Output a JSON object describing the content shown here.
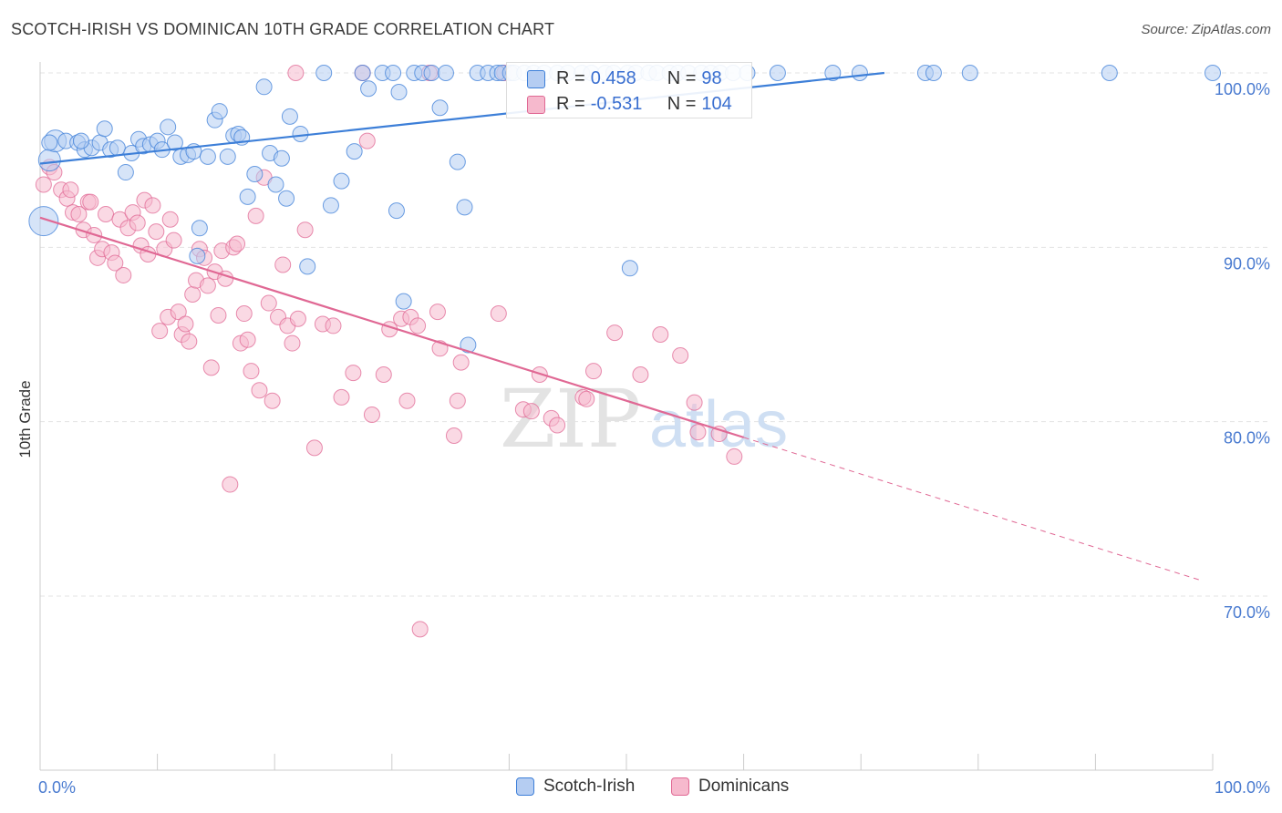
{
  "title": "SCOTCH-IRISH VS DOMINICAN 10TH GRADE CORRELATION CHART",
  "source": "Source: ZipAtlas.com",
  "watermark": {
    "zip": "ZIP",
    "atlas": "atlas"
  },
  "colors": {
    "blue": "#3d7fd8",
    "blue_fill": "#b5cdf2",
    "pink": "#e06894",
    "pink_fill": "#f6b9cd",
    "axis_text": "#4a7bd0"
  },
  "stats": [
    {
      "r_label": "R = ",
      "r": "0.458",
      "n_label": "N = ",
      "n": "98"
    },
    {
      "r_label": "R = ",
      "r": "-0.531",
      "n_label": "N = ",
      "n": "104"
    }
  ],
  "chart_data": {
    "type": "scatter",
    "title": "SCOTCH-IRISH VS DOMINICAN 10TH GRADE CORRELATION CHART",
    "xlabel": "",
    "ylabel": "10th Grade",
    "xlim": [
      0,
      100
    ],
    "ylim": [
      60,
      101.5
    ],
    "x_tick_labels": [
      "0.0%",
      "100.0%"
    ],
    "y_ticks": [
      70,
      80,
      90,
      100
    ],
    "y_tick_labels": [
      "70.0%",
      "80.0%",
      "90.0%",
      "100.0%"
    ],
    "grid": true,
    "legend_position": "bottom-center",
    "series": [
      {
        "name": "Scotch-Irish",
        "color": "#3d7fd8",
        "trend": {
          "x": [
            0,
            72
          ],
          "y": [
            94.8,
            100
          ]
        },
        "points": [
          [
            0.3,
            91.5
          ],
          [
            0.8,
            95
          ],
          [
            1.3,
            96.1
          ],
          [
            2.2,
            96.1
          ],
          [
            3.2,
            96.0
          ],
          [
            3.8,
            95.6
          ],
          [
            4.4,
            95.7
          ],
          [
            5.1,
            96.0
          ],
          [
            5.5,
            96.8
          ],
          [
            6.0,
            95.6
          ],
          [
            6.6,
            95.7
          ],
          [
            7.3,
            94.3
          ],
          [
            7.8,
            95.4
          ],
          [
            8.4,
            96.2
          ],
          [
            8.8,
            95.8
          ],
          [
            9.4,
            95.9
          ],
          [
            10.0,
            96.1
          ],
          [
            10.4,
            95.6
          ],
          [
            10.9,
            96.9
          ],
          [
            11.5,
            96.0
          ],
          [
            12.0,
            95.2
          ],
          [
            12.6,
            95.3
          ],
          [
            13.1,
            95.5
          ],
          [
            13.4,
            89.5
          ],
          [
            13.6,
            91.1
          ],
          [
            14.3,
            95.2
          ],
          [
            14.9,
            97.3
          ],
          [
            15.3,
            97.8
          ],
          [
            16.0,
            95.2
          ],
          [
            16.5,
            96.4
          ],
          [
            16.9,
            96.5
          ],
          [
            17.2,
            96.3
          ],
          [
            17.7,
            92.9
          ],
          [
            18.3,
            94.2
          ],
          [
            19.1,
            99.2
          ],
          [
            19.6,
            95.4
          ],
          [
            20.1,
            93.6
          ],
          [
            20.6,
            95.1
          ],
          [
            21.0,
            92.8
          ],
          [
            21.3,
            97.5
          ],
          [
            22.2,
            96.5
          ],
          [
            22.8,
            88.9
          ],
          [
            24.2,
            100
          ],
          [
            24.8,
            92.4
          ],
          [
            25.7,
            93.8
          ],
          [
            26.8,
            95.5
          ],
          [
            27.5,
            100
          ],
          [
            28.0,
            99.1
          ],
          [
            29.2,
            100
          ],
          [
            30.1,
            100
          ],
          [
            30.4,
            92.1
          ],
          [
            30.6,
            98.9
          ],
          [
            31.0,
            86.9
          ],
          [
            31.9,
            100
          ],
          [
            32.6,
            100
          ],
          [
            33.4,
            100
          ],
          [
            34.1,
            98.0
          ],
          [
            34.6,
            100
          ],
          [
            35.6,
            94.9
          ],
          [
            36.2,
            92.3
          ],
          [
            36.5,
            84.4
          ],
          [
            37.3,
            100
          ],
          [
            38.2,
            100
          ],
          [
            39.0,
            100
          ],
          [
            39.4,
            100
          ],
          [
            40.1,
            100
          ],
          [
            40.4,
            100
          ],
          [
            41.3,
            100
          ],
          [
            42.1,
            100
          ],
          [
            43.0,
            100
          ],
          [
            44.1,
            100
          ],
          [
            45.0,
            100
          ],
          [
            46.2,
            100
          ],
          [
            47.0,
            100
          ],
          [
            48.2,
            100
          ],
          [
            48.9,
            100
          ],
          [
            50.1,
            100
          ],
          [
            50.8,
            100
          ],
          [
            51.9,
            100
          ],
          [
            52.6,
            100
          ],
          [
            53.7,
            100
          ],
          [
            54.4,
            100
          ],
          [
            55.3,
            100
          ],
          [
            56.4,
            100
          ],
          [
            57.2,
            100
          ],
          [
            58.0,
            100
          ],
          [
            59.1,
            100
          ],
          [
            60.3,
            100
          ],
          [
            62.9,
            100
          ],
          [
            67.6,
            100
          ],
          [
            69.9,
            100
          ],
          [
            75.5,
            100
          ],
          [
            76.2,
            100
          ],
          [
            79.3,
            100
          ],
          [
            91.2,
            100
          ],
          [
            100,
            100
          ],
          [
            50.3,
            88.8
          ],
          [
            0.8,
            96.0
          ],
          [
            3.5,
            96.1
          ]
        ]
      },
      {
        "name": "Dominicans",
        "color": "#e06894",
        "trend": {
          "x": [
            0,
            60
          ],
          "y": [
            91.7,
            79.1
          ]
        },
        "trend_dashed": {
          "x": [
            60,
            99
          ],
          "y": [
            79.1,
            70.9
          ]
        },
        "points": [
          [
            0.3,
            93.6
          ],
          [
            0.8,
            94.6
          ],
          [
            1.2,
            94.3
          ],
          [
            1.8,
            93.3
          ],
          [
            2.3,
            92.8
          ],
          [
            2.6,
            93.3
          ],
          [
            2.8,
            92.0
          ],
          [
            3.3,
            91.9
          ],
          [
            3.7,
            91.0
          ],
          [
            4.1,
            92.6
          ],
          [
            4.3,
            92.6
          ],
          [
            4.6,
            90.7
          ],
          [
            4.9,
            89.4
          ],
          [
            5.3,
            89.9
          ],
          [
            5.6,
            91.9
          ],
          [
            6.1,
            89.7
          ],
          [
            6.4,
            89.1
          ],
          [
            6.8,
            91.6
          ],
          [
            7.1,
            88.4
          ],
          [
            7.5,
            91.1
          ],
          [
            7.9,
            92.0
          ],
          [
            8.3,
            91.4
          ],
          [
            8.6,
            90.1
          ],
          [
            8.9,
            92.7
          ],
          [
            9.2,
            89.6
          ],
          [
            9.6,
            92.4
          ],
          [
            9.9,
            90.9
          ],
          [
            10.2,
            85.2
          ],
          [
            10.6,
            89.9
          ],
          [
            10.9,
            86.0
          ],
          [
            11.1,
            91.6
          ],
          [
            11.4,
            90.4
          ],
          [
            11.8,
            86.3
          ],
          [
            12.1,
            85.0
          ],
          [
            12.4,
            85.6
          ],
          [
            12.7,
            84.6
          ],
          [
            13.0,
            87.3
          ],
          [
            13.3,
            88.1
          ],
          [
            13.6,
            89.9
          ],
          [
            14.0,
            89.4
          ],
          [
            14.3,
            87.8
          ],
          [
            14.6,
            83.1
          ],
          [
            14.9,
            88.6
          ],
          [
            15.2,
            86.1
          ],
          [
            15.5,
            89.8
          ],
          [
            15.8,
            88.2
          ],
          [
            16.2,
            76.4
          ],
          [
            16.5,
            90.0
          ],
          [
            16.8,
            90.2
          ],
          [
            17.1,
            84.5
          ],
          [
            17.4,
            86.2
          ],
          [
            17.7,
            84.7
          ],
          [
            18.0,
            82.9
          ],
          [
            18.4,
            91.8
          ],
          [
            18.7,
            81.8
          ],
          [
            19.1,
            94.0
          ],
          [
            19.5,
            86.8
          ],
          [
            19.8,
            81.2
          ],
          [
            20.3,
            86.0
          ],
          [
            20.7,
            89.0
          ],
          [
            21.1,
            85.5
          ],
          [
            21.5,
            84.5
          ],
          [
            22.0,
            85.9
          ],
          [
            22.6,
            91.0
          ],
          [
            23.4,
            78.5
          ],
          [
            24.1,
            85.6
          ],
          [
            25.0,
            85.5
          ],
          [
            25.7,
            81.4
          ],
          [
            26.7,
            82.8
          ],
          [
            27.5,
            100
          ],
          [
            27.9,
            96.1
          ],
          [
            28.3,
            80.4
          ],
          [
            29.3,
            82.7
          ],
          [
            29.8,
            85.3
          ],
          [
            30.8,
            85.9
          ],
          [
            31.3,
            81.2
          ],
          [
            31.6,
            86.0
          ],
          [
            32.2,
            85.5
          ],
          [
            32.4,
            68.1
          ],
          [
            33.2,
            100
          ],
          [
            33.9,
            86.3
          ],
          [
            34.1,
            84.2
          ],
          [
            35.3,
            79.2
          ],
          [
            35.6,
            81.2
          ],
          [
            35.9,
            83.4
          ],
          [
            39.1,
            86.2
          ],
          [
            39.6,
            100
          ],
          [
            41.2,
            80.7
          ],
          [
            41.9,
            80.6
          ],
          [
            42.6,
            82.7
          ],
          [
            43.6,
            80.2
          ],
          [
            44.1,
            79.8
          ],
          [
            46.3,
            81.4
          ],
          [
            46.6,
            81.3
          ],
          [
            47.2,
            82.9
          ],
          [
            49.0,
            85.1
          ],
          [
            51.2,
            82.7
          ],
          [
            52.9,
            85.0
          ],
          [
            54.6,
            83.8
          ],
          [
            55.8,
            81.1
          ],
          [
            56.1,
            79.4
          ],
          [
            57.9,
            79.3
          ],
          [
            59.2,
            78.0
          ],
          [
            21.8,
            100
          ]
        ]
      }
    ]
  },
  "legend": [
    {
      "label": "Scotch-Irish"
    },
    {
      "label": "Dominicans"
    }
  ]
}
